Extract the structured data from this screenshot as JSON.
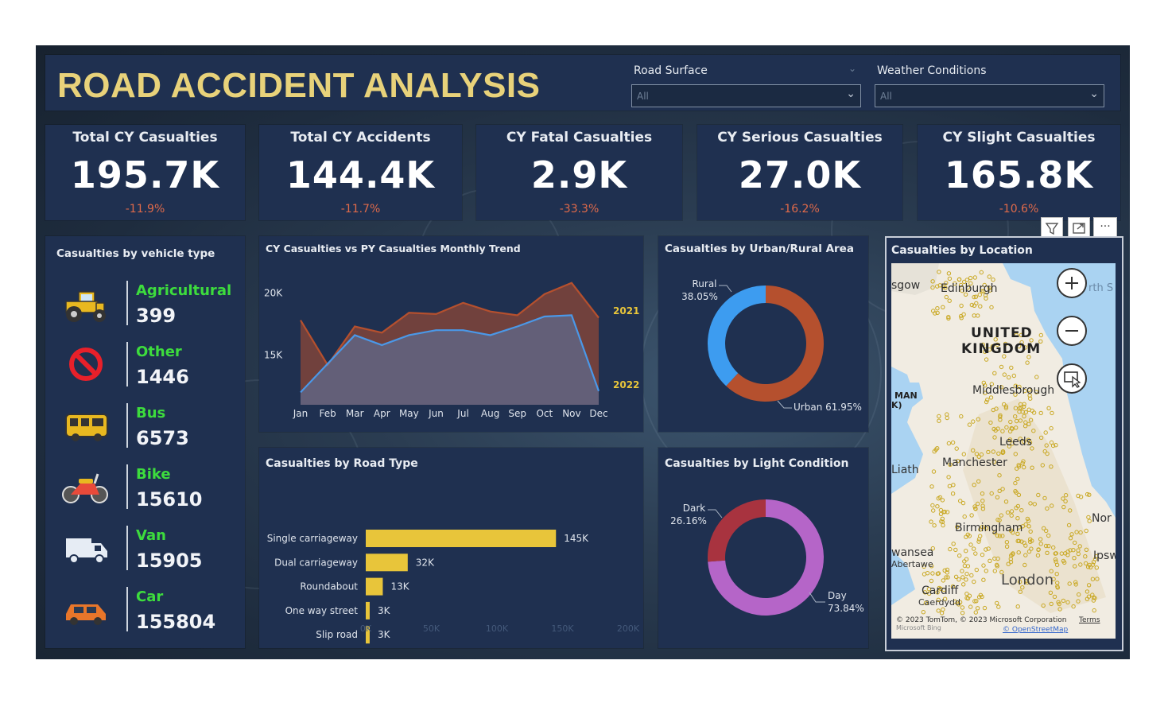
{
  "header": {
    "title": "ROAD ACCIDENT ANALYSIS",
    "filters": [
      {
        "label": "Road Surface",
        "value": "All"
      },
      {
        "label": "Weather Conditions",
        "value": "All"
      }
    ]
  },
  "kpis": [
    {
      "label": "Total CY Casualties",
      "value": "195.7K",
      "change": "-11.9%"
    },
    {
      "label": "Total CY Accidents",
      "value": "144.4K",
      "change": "-11.7%"
    },
    {
      "label": "CY Fatal Casualties",
      "value": "2.9K",
      "change": "-33.3%"
    },
    {
      "label": "CY Serious Casualties",
      "value": "27.0K",
      "change": "-16.2%"
    },
    {
      "label": "CY Slight Casualties",
      "value": "165.8K",
      "change": "-10.6%"
    }
  ],
  "vehicles": {
    "title": "Casualties by vehicle type",
    "items": [
      {
        "name": "Agricultural",
        "count": "399",
        "icon": "tractor-icon"
      },
      {
        "name": "Other",
        "count": "1446",
        "icon": "no-entry-icon"
      },
      {
        "name": "Bus",
        "count": "6573",
        "icon": "bus-icon"
      },
      {
        "name": "Bike",
        "count": "15610",
        "icon": "motorbike-icon"
      },
      {
        "name": "Van",
        "count": "15905",
        "icon": "van-icon"
      },
      {
        "name": "Car",
        "count": "155804",
        "icon": "car-icon"
      }
    ]
  },
  "chart_data": [
    {
      "type": "area",
      "title": "CY Casualties vs PY Casualties Monthly Trend",
      "categories": [
        "Jan",
        "Feb",
        "Mar",
        "Apr",
        "May",
        "Jun",
        "Jul",
        "Aug",
        "Sep",
        "Oct",
        "Nov",
        "Dec"
      ],
      "ytick_labels": [
        "15K",
        "20K"
      ],
      "ylim": [
        11000,
        22000
      ],
      "series": [
        {
          "name": "2021",
          "color": "#b5502e",
          "values": [
            17800,
            14200,
            17300,
            16800,
            18400,
            18300,
            19200,
            18500,
            18200,
            19900,
            20800,
            18000
          ]
        },
        {
          "name": "2022",
          "color": "#4a98e8",
          "values": [
            12000,
            14300,
            16600,
            15800,
            16600,
            17000,
            17000,
            16600,
            17300,
            18100,
            18200,
            12100
          ]
        }
      ]
    },
    {
      "type": "pie",
      "title": "Casualties by Urban/Rural Area",
      "slices": [
        {
          "label": "Rural",
          "value": 38.05,
          "display": "38.05%",
          "color": "#3d9cf0"
        },
        {
          "label": "Urban",
          "value": 61.95,
          "display": "Urban 61.95%",
          "color": "#b5502e"
        }
      ]
    },
    {
      "type": "bar",
      "title": "Casualties by Road Type",
      "categories": [
        "Single carriageway",
        "Dual carriageway",
        "Roundabout",
        "One way street",
        "Slip road"
      ],
      "values": [
        145000,
        32000,
        13000,
        3000,
        3000
      ],
      "data_labels": [
        "145K",
        "32K",
        "13K",
        "3K",
        "3K"
      ],
      "xtick_labels": [
        "0K",
        "50K",
        "100K",
        "150K",
        "200K"
      ],
      "xlim": [
        0,
        200000
      ],
      "color": "#e8c53a"
    },
    {
      "type": "pie",
      "title": "Casualties by Light Condition",
      "slices": [
        {
          "label": "Dark",
          "value": 26.16,
          "display": "26.16%",
          "color": "#a8333f"
        },
        {
          "label": "Day",
          "value": 73.84,
          "display": "73.84%",
          "color": "#b565c8"
        }
      ]
    }
  ],
  "map": {
    "title": "Casualties by Location",
    "labels": {
      "glasgow": "sgow",
      "edinburgh": "Edinburgh",
      "north_sea": "rth S",
      "uk_line1": "UNITED",
      "uk_line2": "KINGDOM",
      "isle_of_man": "MAN",
      "isle_of_man_k": "K)",
      "middlesbrough": "Middlesbrough",
      "leeds": "Leeds",
      "manchester": "Manchester",
      "liath": "Liath",
      "birmingham": "Birmingham",
      "norwich": "Nor",
      "ipswich": "Ipsw",
      "swansea": "wansea",
      "abertawe": "Abertawe",
      "cardiff": "Cardiff",
      "caerdydd": "Caerdydd",
      "london": "London"
    },
    "attribution": "© 2023 TomTom, © 2023 Microsoft Corporation",
    "terms": "Terms",
    "osm": "© OpenStreetMap",
    "ms_logo": "Microsoft Bing"
  },
  "visual_header": {
    "more": "···"
  }
}
